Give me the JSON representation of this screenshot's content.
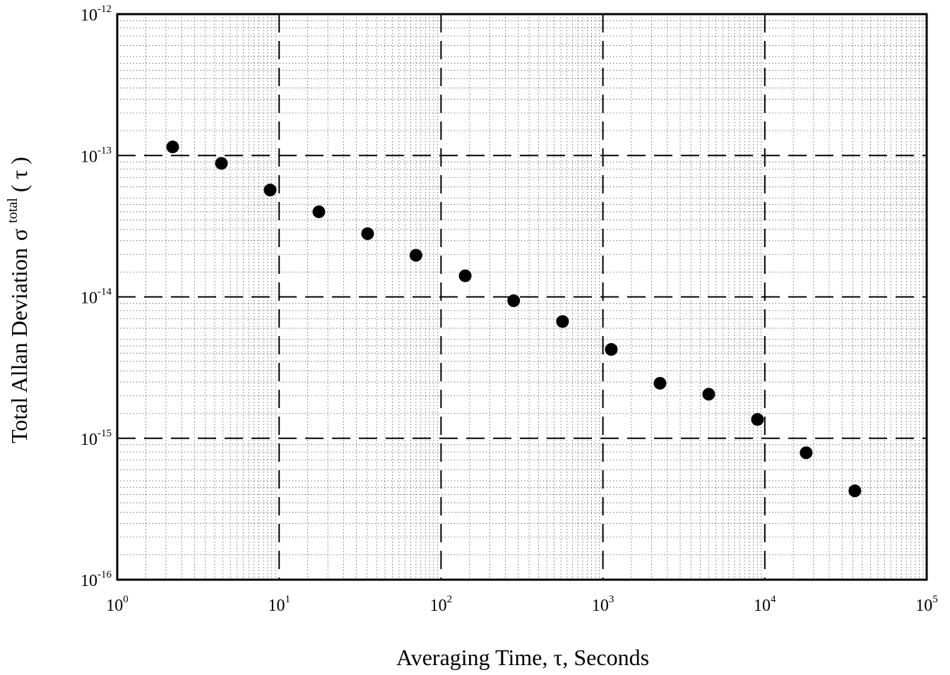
{
  "chart_data": {
    "type": "scatter",
    "title": "",
    "xlabel": "Averaging Time, τ, Seconds",
    "ylabel": "Total Allan Deviation",
    "ylabel_symbol": "σ",
    "ylabel_subscript": "total",
    "ylabel_paren_open": "(",
    "ylabel_tau": "τ",
    "ylabel_paren_close": ")",
    "x_scale": "log",
    "y_scale": "log",
    "xlim": [
      1,
      100000
    ],
    "ylim": [
      1e-16,
      1e-12
    ],
    "x_ticks": [
      {
        "base": "10",
        "exp": "0"
      },
      {
        "base": "10",
        "exp": "1"
      },
      {
        "base": "10",
        "exp": "2"
      },
      {
        "base": "10",
        "exp": "3"
      },
      {
        "base": "10",
        "exp": "4"
      },
      {
        "base": "10",
        "exp": "5"
      }
    ],
    "y_ticks": [
      {
        "base": "10",
        "exp": "-16"
      },
      {
        "base": "10",
        "exp": "-15"
      },
      {
        "base": "10",
        "exp": "-14"
      },
      {
        "base": "10",
        "exp": "-13"
      },
      {
        "base": "10",
        "exp": "-12"
      }
    ],
    "grid": {
      "major": "dashed",
      "minor": "dotted"
    },
    "legend": "none",
    "marker_color": "#000000",
    "points": [
      {
        "x": 2.2,
        "y": 1.15e-13
      },
      {
        "x": 4.4,
        "y": 8.8e-14
      },
      {
        "x": 8.8,
        "y": 5.7e-14
      },
      {
        "x": 17.6,
        "y": 4e-14
      },
      {
        "x": 35.2,
        "y": 2.8e-14
      },
      {
        "x": 70,
        "y": 1.97e-14
      },
      {
        "x": 141,
        "y": 1.41e-14
      },
      {
        "x": 281,
        "y": 9.4e-15
      },
      {
        "x": 563,
        "y": 6.7e-15
      },
      {
        "x": 1126,
        "y": 4.25e-15
      },
      {
        "x": 2252,
        "y": 2.45e-15
      },
      {
        "x": 4504,
        "y": 2.05e-15
      },
      {
        "x": 9010,
        "y": 1.36e-15
      },
      {
        "x": 18000,
        "y": 7.9e-16
      },
      {
        "x": 36000,
        "y": 4.25e-16
      }
    ]
  }
}
